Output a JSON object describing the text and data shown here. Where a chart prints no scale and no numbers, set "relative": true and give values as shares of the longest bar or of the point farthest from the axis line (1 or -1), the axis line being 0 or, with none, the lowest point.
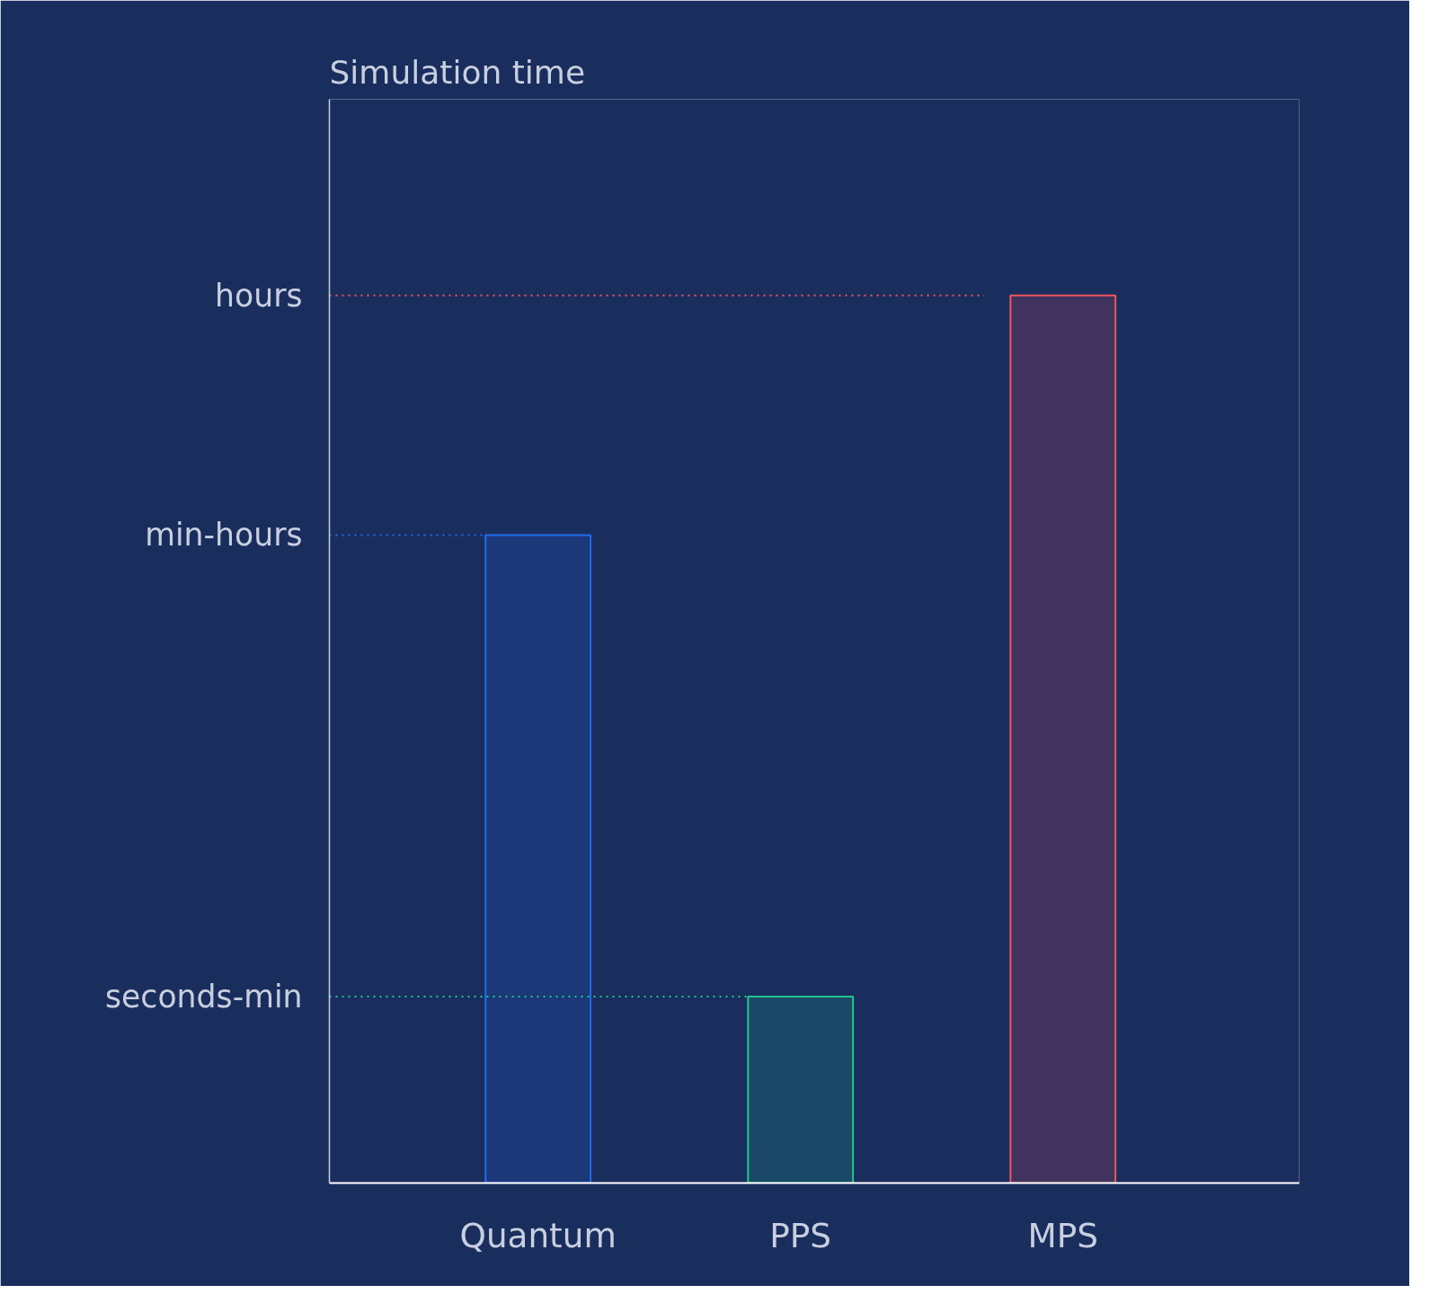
{
  "chart_data": {
    "type": "bar",
    "relative": true,
    "annotations": [
      "Simulation time"
    ],
    "categories": [
      "Quantum",
      "PPS",
      "MPS"
    ],
    "values": [
      0.73,
      0.21,
      1
    ],
    "colors": [
      "#1f6cf0",
      "#22c48a",
      "#f0545c"
    ],
    "ref_lines": [
      {
        "axis": "y",
        "value": 1,
        "label": "hours",
        "color": "#f0545c",
        "line_style": "dotted"
      },
      {
        "axis": "y",
        "value": 0.73,
        "label": "min-hours",
        "color": "#1f6cf0",
        "line_style": "dotted"
      },
      {
        "axis": "y",
        "value": 0.21,
        "label": "seconds-min",
        "color": "#22c48a",
        "line_style": "dotted"
      }
    ]
  }
}
